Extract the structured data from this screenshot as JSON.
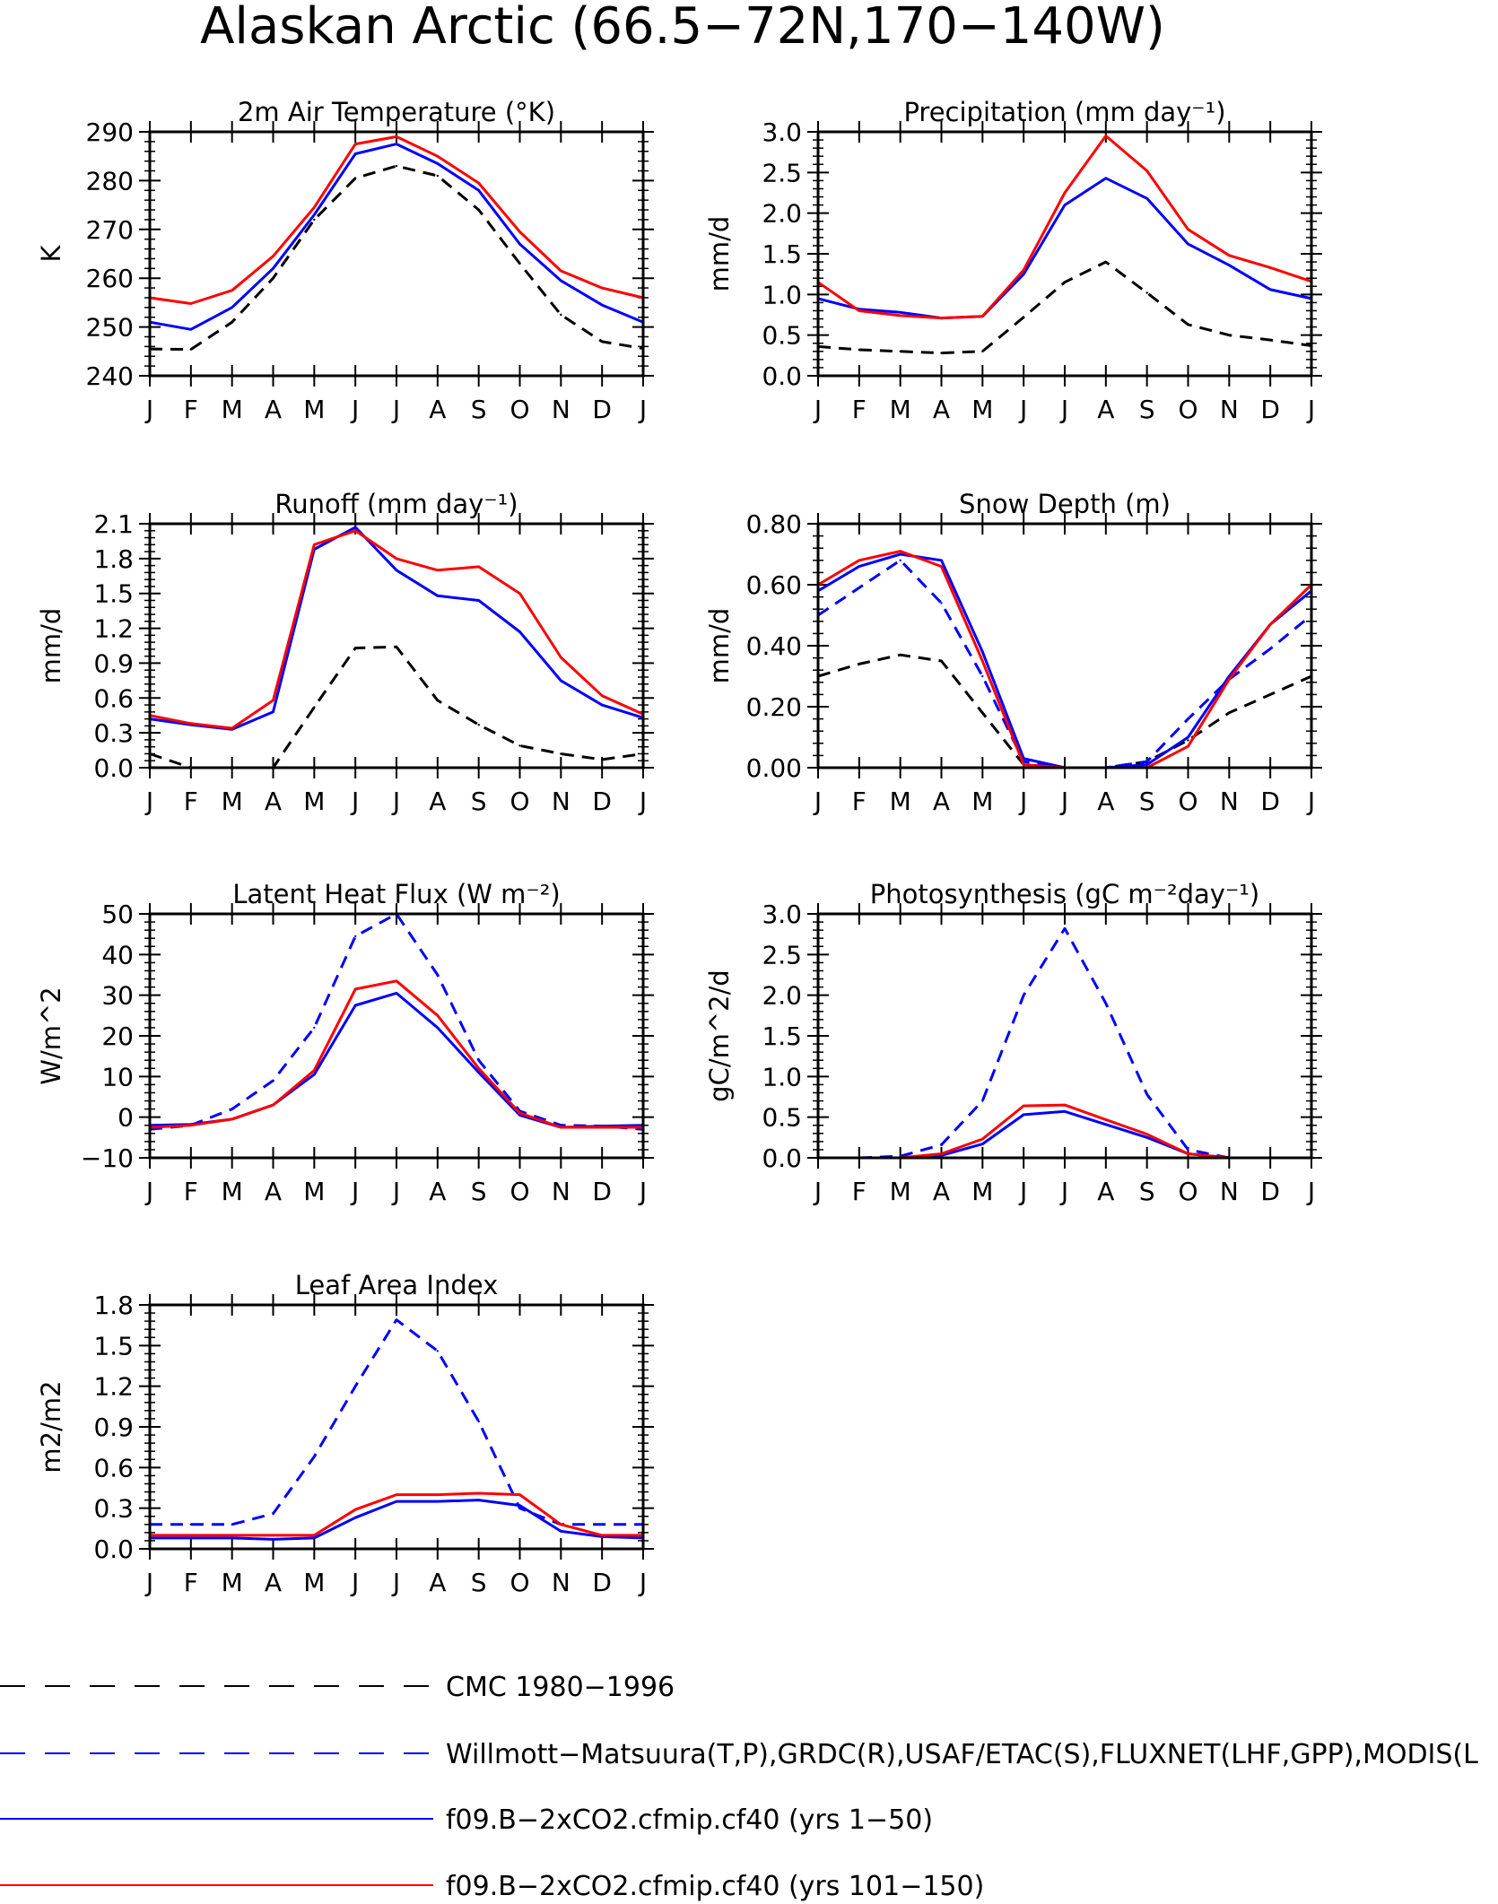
{
  "title": "Alaskan Arctic (66.5−72N,170−140W)",
  "months": [
    "J",
    "F",
    "M",
    "A",
    "M",
    "J",
    "J",
    "A",
    "S",
    "O",
    "N",
    "D",
    "J"
  ],
  "colors": {
    "obs_cmc": "#000000",
    "obs_other": "#0000ff",
    "model_1_50": "#0000ff",
    "model_101_150": "#ff0000"
  },
  "legend": [
    {
      "label": "CMC 1980−1996",
      "color": "#000000",
      "dash": true
    },
    {
      "label": "Willmott−Matsuura(T,P),GRDC(R),USAF/ETAC(S),FLUXNET(LHF,GPP),MODIS(L",
      "color": "#0000ff",
      "dash": true
    },
    {
      "label": "f09.B−2xCO2.cfmip.cf40 (yrs 1−50)",
      "color": "#0000ff",
      "dash": false
    },
    {
      "label": "f09.B−2xCO2.cfmip.cf40 (yrs 101−150)",
      "color": "#ff0000",
      "dash": false
    }
  ],
  "chart_data": [
    {
      "type": "line",
      "title": "2m Air Temperature (°K)",
      "ylabel": "K",
      "ylim": [
        240,
        290
      ],
      "yticks": [
        "240",
        "250",
        "260",
        "270",
        "280",
        "290"
      ],
      "series": [
        {
          "name": "CMC 1980−1996",
          "style": "dash",
          "color": "#000000",
          "values": [
            245.5,
            245.4,
            251,
            260,
            272,
            280.5,
            283,
            281,
            274,
            263,
            252.5,
            247,
            245.6
          ]
        },
        {
          "name": "f09.B−2xCO2.cfmip.cf40 (yrs 1−50)",
          "style": "solid",
          "color": "#0000ff",
          "values": [
            251,
            249.5,
            254,
            262,
            273,
            285.5,
            287.5,
            283.5,
            278,
            267,
            259.5,
            254.5,
            251
          ]
        },
        {
          "name": "f09.B−2xCO2.cfmip.cf40 (yrs 101−150)",
          "style": "solid",
          "color": "#ff0000",
          "values": [
            256,
            254.8,
            257.5,
            264.5,
            274.5,
            287.5,
            289,
            285,
            279.5,
            269.5,
            261.5,
            258,
            256
          ]
        }
      ]
    },
    {
      "type": "line",
      "title": "Precipitation (mm day⁻¹)",
      "ylabel": "mm/d",
      "ylim": [
        0,
        3
      ],
      "yticks": [
        "0.0",
        "0.5",
        "1.0",
        "1.5",
        "2.0",
        "2.5",
        "3.0"
      ],
      "series": [
        {
          "name": "CMC 1980−1996",
          "style": "dash",
          "color": "#000000",
          "values": [
            0.36,
            0.32,
            0.3,
            0.28,
            0.3,
            0.72,
            1.15,
            1.4,
            1.02,
            0.63,
            0.5,
            0.44,
            0.37
          ]
        },
        {
          "name": "f09.B−2xCO2.cfmip.cf40 (yrs 1−50)",
          "style": "solid",
          "color": "#0000ff",
          "values": [
            0.95,
            0.82,
            0.78,
            0.71,
            0.73,
            1.25,
            2.1,
            2.43,
            2.18,
            1.62,
            1.36,
            1.06,
            0.95
          ]
        },
        {
          "name": "f09.B−2xCO2.cfmip.cf40 (yrs 101−150)",
          "style": "solid",
          "color": "#ff0000",
          "values": [
            1.15,
            0.8,
            0.74,
            0.71,
            0.73,
            1.3,
            2.25,
            2.95,
            2.52,
            1.8,
            1.48,
            1.33,
            1.16
          ]
        }
      ]
    },
    {
      "type": "line",
      "title": "Runoff (mm day⁻¹)",
      "ylabel": "mm/d",
      "ylim": [
        0,
        2.1
      ],
      "yticks": [
        "0.0",
        "0.3",
        "0.6",
        "0.9",
        "1.2",
        "1.5",
        "1.8",
        "2.1"
      ],
      "series": [
        {
          "name": "CMC 1980−1996",
          "style": "dash",
          "color": "#000000",
          "values": [
            0.12,
            0.0,
            0.0,
            0.0,
            0.52,
            1.03,
            1.04,
            0.58,
            0.37,
            0.19,
            0.12,
            0.07,
            0.12
          ]
        },
        {
          "name": "f09.B−2xCO2.cfmip.cf40 (yrs 1−50)",
          "style": "solid",
          "color": "#0000ff",
          "values": [
            0.42,
            0.37,
            0.33,
            0.48,
            1.88,
            2.07,
            1.7,
            1.48,
            1.44,
            1.17,
            0.75,
            0.54,
            0.43
          ]
        },
        {
          "name": "f09.B−2xCO2.cfmip.cf40 (yrs 101−150)",
          "style": "solid",
          "color": "#ff0000",
          "values": [
            0.45,
            0.38,
            0.34,
            0.58,
            1.92,
            2.04,
            1.8,
            1.7,
            1.73,
            1.5,
            0.95,
            0.62,
            0.46
          ]
        }
      ]
    },
    {
      "type": "line",
      "title": "Snow Depth (m)",
      "ylabel": "mm/d",
      "ylim": [
        0,
        0.8
      ],
      "yticks": [
        "0.00",
        "0.20",
        "0.40",
        "0.60",
        "0.80"
      ],
      "series": [
        {
          "name": "CMC 1980−1996",
          "style": "dash",
          "color": "#000000",
          "values": [
            0.3,
            0.34,
            0.37,
            0.35,
            0.18,
            0.01,
            0.0,
            0.0,
            0.02,
            0.09,
            0.18,
            0.24,
            0.3
          ]
        },
        {
          "name": "Willmott−Matsuura(T,P),GRDC(R),USAF/ETAC(S),FLUXNET(LHF,GPP),MODIS(L",
          "style": "dash",
          "color": "#0000ff",
          "values": [
            0.5,
            0.59,
            0.68,
            0.54,
            0.3,
            0.02,
            0.0,
            0.0,
            0.02,
            0.16,
            0.29,
            0.39,
            0.5
          ]
        },
        {
          "name": "f09.B−2xCO2.cfmip.cf40 (yrs 1−50)",
          "style": "solid",
          "color": "#0000ff",
          "values": [
            0.58,
            0.66,
            0.7,
            0.68,
            0.38,
            0.03,
            0.0,
            0.0,
            0.01,
            0.1,
            0.3,
            0.47,
            0.58
          ]
        },
        {
          "name": "f09.B−2xCO2.cfmip.cf40 (yrs 101−150)",
          "style": "solid",
          "color": "#ff0000",
          "values": [
            0.6,
            0.68,
            0.71,
            0.66,
            0.35,
            0.01,
            0.0,
            0.0,
            0.0,
            0.07,
            0.29,
            0.47,
            0.6
          ]
        }
      ]
    },
    {
      "type": "line",
      "title": "Latent Heat Flux (W m⁻²)",
      "ylabel": "W/m^2",
      "ylim": [
        -10,
        50
      ],
      "yticks": [
        "−10",
        "0",
        "10",
        "20",
        "30",
        "40",
        "50"
      ],
      "series": [
        {
          "name": "Willmott−Matsuura(T,P),GRDC(R),USAF/ETAC(S),FLUXNET(LHF,GPP),MODIS(L",
          "style": "dash",
          "color": "#0000ff",
          "values": [
            -3,
            -2,
            2,
            9,
            22,
            44.5,
            50,
            35,
            14,
            1.5,
            -2,
            -2.2,
            -3
          ]
        },
        {
          "name": "f09.B−2xCO2.cfmip.cf40 (yrs 1−50)",
          "style": "solid",
          "color": "#0000ff",
          "values": [
            -2,
            -1.8,
            -0.5,
            3,
            10.5,
            27.5,
            30.5,
            22,
            11,
            0.5,
            -2.5,
            -2.2,
            -2
          ]
        },
        {
          "name": "f09.B−2xCO2.cfmip.cf40 (yrs 101−150)",
          "style": "solid",
          "color": "#ff0000",
          "values": [
            -2.5,
            -2,
            -0.5,
            3,
            11.5,
            31.5,
            33.5,
            25,
            12,
            1,
            -2.5,
            -2.5,
            -2.5
          ]
        }
      ]
    },
    {
      "type": "line",
      "title": "Photosynthesis (gC m⁻²day⁻¹)",
      "ylabel": "gC/m^2/d",
      "ylim": [
        0,
        3
      ],
      "yticks": [
        "0.0",
        "0.5",
        "1.0",
        "1.5",
        "2.0",
        "2.5",
        "3.0"
      ],
      "series": [
        {
          "name": "Willmott−Matsuura(T,P),GRDC(R),USAF/ETAC(S),FLUXNET(LHF,GPP),MODIS(L",
          "style": "dash",
          "color": "#0000ff",
          "values": [
            0,
            0,
            0.02,
            0.16,
            0.7,
            2.0,
            2.82,
            1.9,
            0.78,
            0.1,
            0.0,
            0.0,
            0
          ]
        },
        {
          "name": "f09.B−2xCO2.cfmip.cf40 (yrs 1−50)",
          "style": "solid",
          "color": "#0000ff",
          "values": [
            0,
            0,
            0,
            0.03,
            0.17,
            0.53,
            0.57,
            0.41,
            0.25,
            0.05,
            0.0,
            0.0,
            0
          ]
        },
        {
          "name": "f09.B−2xCO2.cfmip.cf40 (yrs 101−150)",
          "style": "solid",
          "color": "#ff0000",
          "values": [
            0,
            0,
            0,
            0.05,
            0.23,
            0.64,
            0.65,
            0.47,
            0.29,
            0.05,
            0.0,
            0.0,
            0
          ]
        }
      ]
    },
    {
      "type": "line",
      "title": "Leaf Area Index",
      "ylabel": "m2/m2",
      "ylim": [
        0,
        1.8
      ],
      "yticks": [
        "0.0",
        "0.3",
        "0.6",
        "0.9",
        "1.2",
        "1.5",
        "1.8"
      ],
      "series": [
        {
          "name": "Willmott−Matsuura(T,P),GRDC(R),USAF/ETAC(S),FLUXNET(LHF,GPP),MODIS(L",
          "style": "dash",
          "color": "#0000ff",
          "values": [
            0.18,
            0.18,
            0.18,
            0.26,
            0.68,
            1.2,
            1.69,
            1.46,
            0.94,
            0.3,
            0.18,
            0.18,
            0.18
          ]
        },
        {
          "name": "f09.B−2xCO2.cfmip.cf40 (yrs 1−50)",
          "style": "solid",
          "color": "#0000ff",
          "values": [
            0.08,
            0.08,
            0.08,
            0.07,
            0.08,
            0.23,
            0.35,
            0.35,
            0.36,
            0.32,
            0.13,
            0.09,
            0.08
          ]
        },
        {
          "name": "f09.B−2xCO2.cfmip.cf40 (yrs 101−150)",
          "style": "solid",
          "color": "#ff0000",
          "values": [
            0.1,
            0.1,
            0.1,
            0.1,
            0.1,
            0.29,
            0.4,
            0.4,
            0.41,
            0.4,
            0.18,
            0.1,
            0.1
          ]
        }
      ]
    }
  ]
}
